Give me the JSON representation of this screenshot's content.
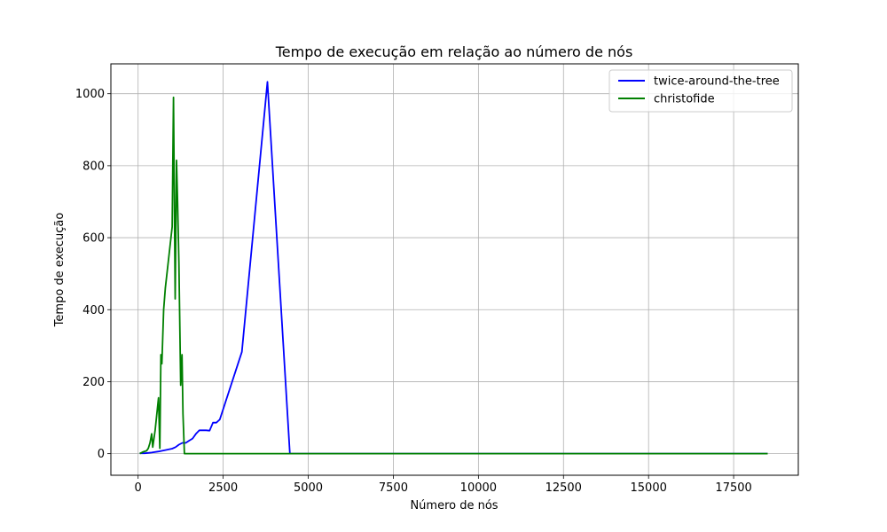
{
  "chart_data": {
    "type": "line",
    "title": "Tempo de execução em relação ao número de nós",
    "xlabel": "Número de nós",
    "ylabel": "Tempo de execução",
    "xlim": [
      -800,
      19400
    ],
    "ylim": [
      -60,
      1083
    ],
    "xticks": [
      0,
      2500,
      5000,
      7500,
      10000,
      12500,
      15000,
      17500
    ],
    "xtick_labels": [
      "0",
      "2500",
      "5000",
      "7500",
      "10000",
      "12500",
      "15000",
      "17500"
    ],
    "yticks": [
      0,
      200,
      400,
      600,
      800,
      1000
    ],
    "ytick_labels": [
      "0",
      "200",
      "400",
      "600",
      "800",
      "1000"
    ],
    "grid": true,
    "legend_position": "top-right",
    "series": [
      {
        "name": "twice-around-the-tree",
        "color": "#0000ff",
        "x": [
          51,
          200,
          400,
          600,
          800,
          1000,
          1100,
          1200,
          1300,
          1400,
          1500,
          1600,
          1700,
          1800,
          2000,
          2100,
          2200,
          2300,
          2400,
          3050,
          3800,
          4460,
          5000,
          10000,
          18500
        ],
        "y": [
          1,
          1,
          3,
          6,
          10,
          14,
          18,
          25,
          30,
          30,
          36,
          42,
          55,
          65,
          65,
          64,
          86,
          86,
          95,
          283,
          1033,
          0,
          0,
          0,
          0
        ]
      },
      {
        "name": "christofide",
        "color": "#008000",
        "x": [
          51,
          150,
          250,
          300,
          350,
          400,
          430,
          500,
          600,
          640,
          670,
          700,
          750,
          800,
          1000,
          1040,
          1090,
          1130,
          1160,
          1200,
          1250,
          1290,
          1320,
          1360,
          1400,
          5000,
          10000,
          18500
        ],
        "y": [
          0,
          5,
          8,
          15,
          30,
          55,
          18,
          65,
          155,
          15,
          275,
          250,
          400,
          460,
          630,
          990,
          430,
          815,
          700,
          530,
          190,
          275,
          110,
          0,
          0,
          0,
          0,
          0
        ]
      }
    ]
  }
}
